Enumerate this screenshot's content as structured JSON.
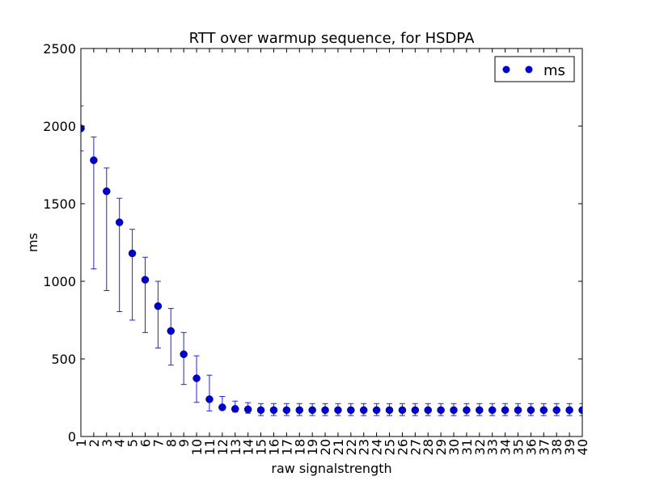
{
  "chart_data": {
    "type": "scatter",
    "title": "RTT over warmup sequence, for HSDPA",
    "xlabel": "raw signalstrength",
    "ylabel": "ms",
    "xlim": [
      1,
      40
    ],
    "ylim": [
      0,
      2500
    ],
    "y_ticks": [
      0,
      500,
      1000,
      1500,
      2000,
      2500
    ],
    "x": [
      1,
      2,
      3,
      4,
      5,
      6,
      7,
      8,
      9,
      10,
      11,
      12,
      13,
      14,
      15,
      16,
      17,
      18,
      19,
      20,
      21,
      22,
      23,
      24,
      25,
      26,
      27,
      28,
      29,
      30,
      31,
      32,
      33,
      34,
      35,
      36,
      37,
      38,
      39,
      40
    ],
    "x_tick_labels": [
      "1",
      "2",
      "3",
      "4",
      "5",
      "6",
      "7",
      "8",
      "9",
      "10",
      "11",
      "12",
      "13",
      "14",
      "15",
      "16",
      "17",
      "18",
      "19",
      "20",
      "21",
      "22",
      "23",
      "24",
      "25",
      "26",
      "27",
      "28",
      "29",
      "30",
      "31",
      "32",
      "33",
      "34",
      "35",
      "36",
      "37",
      "38",
      "39",
      "40"
    ],
    "grid": false,
    "legend_position": "top-right",
    "series": [
      {
        "name": "ms",
        "color": "#0000cc",
        "error_bar_color": "#2222dd",
        "values": [
          1985,
          1780,
          1580,
          1380,
          1180,
          1010,
          840,
          680,
          530,
          375,
          240,
          188,
          178,
          175,
          170,
          170,
          170,
          170,
          170,
          170,
          170,
          170,
          170,
          170,
          170,
          170,
          170,
          170,
          170,
          170,
          170,
          170,
          170,
          170,
          170,
          170,
          170,
          170,
          170,
          170
        ],
        "y_low": [
          1840,
          1080,
          940,
          805,
          750,
          670,
          570,
          460,
          335,
          220,
          165,
          172,
          158,
          150,
          135,
          135,
          135,
          135,
          135,
          135,
          135,
          135,
          135,
          135,
          135,
          135,
          135,
          135,
          135,
          135,
          135,
          135,
          135,
          135,
          135,
          135,
          135,
          135,
          135,
          135
        ],
        "y_high": [
          2130,
          1930,
          1730,
          1535,
          1335,
          1155,
          1000,
          825,
          670,
          520,
          395,
          258,
          228,
          218,
          212,
          212,
          212,
          212,
          212,
          212,
          212,
          212,
          212,
          212,
          212,
          212,
          212,
          212,
          212,
          212,
          212,
          212,
          212,
          212,
          212,
          212,
          212,
          212,
          212,
          212
        ]
      }
    ]
  }
}
